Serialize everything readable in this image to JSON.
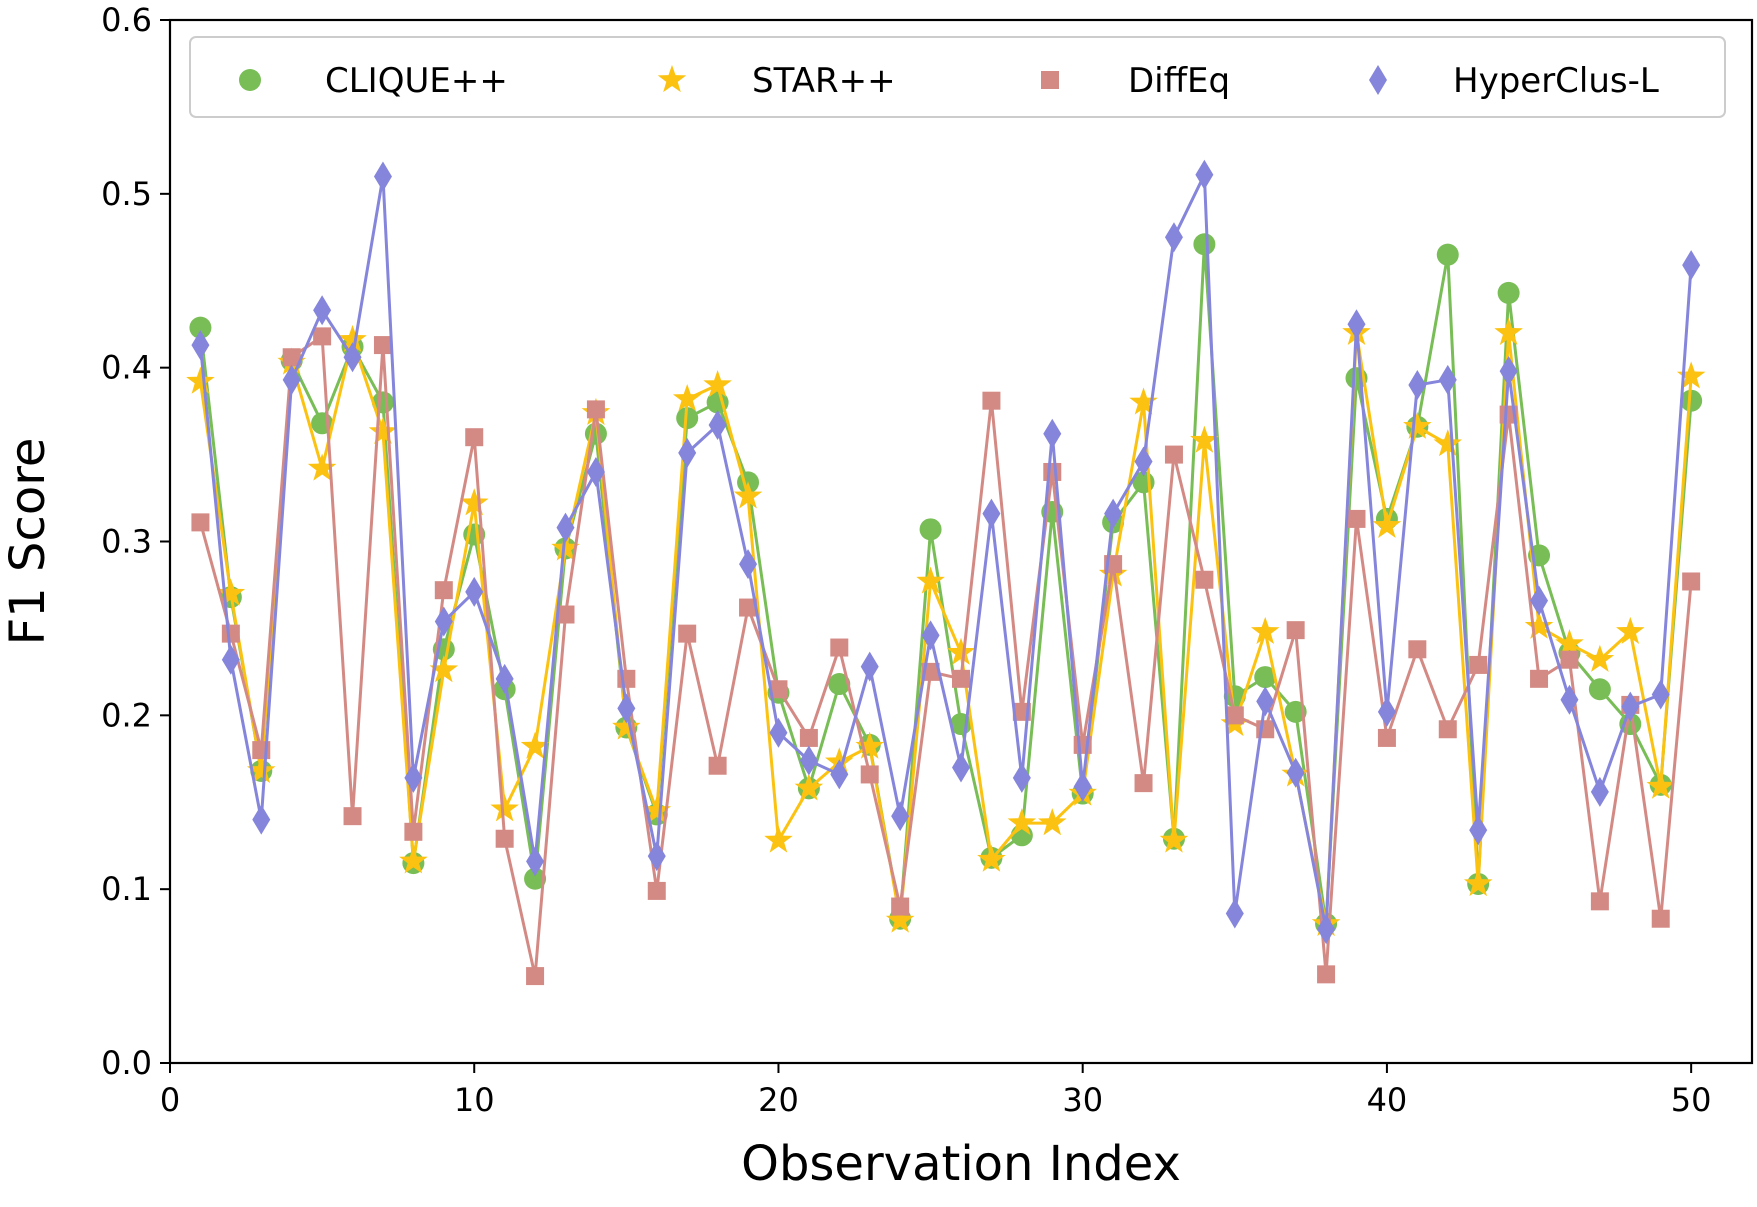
{
  "chart_data": {
    "type": "line",
    "xlabel": "Observation Index",
    "ylabel": "F1 Score",
    "xlim": [
      0,
      52
    ],
    "ylim": [
      0.0,
      0.6
    ],
    "xticks": [
      0,
      10,
      20,
      30,
      40,
      50
    ],
    "yticks": [
      0.0,
      0.1,
      0.2,
      0.3,
      0.4,
      0.5,
      0.6
    ],
    "xtick_labels": [
      "0",
      "10",
      "20",
      "30",
      "40",
      "50"
    ],
    "ytick_labels": [
      "0.0",
      "0.1",
      "0.2",
      "0.3",
      "0.4",
      "0.5",
      "0.6"
    ],
    "grid": false,
    "legend_position": "top",
    "x": [
      1,
      2,
      3,
      4,
      5,
      6,
      7,
      8,
      9,
      10,
      11,
      12,
      13,
      14,
      15,
      16,
      17,
      18,
      19,
      20,
      21,
      22,
      23,
      24,
      25,
      26,
      27,
      28,
      29,
      30,
      31,
      32,
      33,
      34,
      35,
      36,
      37,
      38,
      39,
      40,
      41,
      42,
      43,
      44,
      45,
      46,
      47,
      48,
      49,
      50
    ],
    "series": [
      {
        "name": "CLIQUE++",
        "color": "#78bd56",
        "marker": "circle",
        "values": [
          0.423,
          0.268,
          0.168,
          0.404,
          0.368,
          0.412,
          0.38,
          0.115,
          0.238,
          0.304,
          0.215,
          0.106,
          0.296,
          0.362,
          0.193,
          0.143,
          0.371,
          0.38,
          0.334,
          0.213,
          0.158,
          0.218,
          0.183,
          0.083,
          0.307,
          0.195,
          0.118,
          0.131,
          0.317,
          0.155,
          0.311,
          0.334,
          0.129,
          0.471,
          0.211,
          0.222,
          0.202,
          0.08,
          0.394,
          0.313,
          0.366,
          0.465,
          0.103,
          0.443,
          0.292,
          0.236,
          0.215,
          0.195,
          0.16,
          0.381
        ]
      },
      {
        "name": "STAR++",
        "color": "#fbc211",
        "marker": "star",
        "values": [
          0.392,
          0.27,
          0.168,
          0.403,
          0.342,
          0.416,
          0.363,
          0.116,
          0.226,
          0.322,
          0.146,
          0.182,
          0.296,
          0.374,
          0.193,
          0.145,
          0.382,
          0.39,
          0.326,
          0.128,
          0.158,
          0.173,
          0.182,
          0.082,
          0.277,
          0.236,
          0.117,
          0.138,
          0.138,
          0.155,
          0.281,
          0.38,
          0.128,
          0.358,
          0.195,
          0.248,
          0.166,
          0.08,
          0.42,
          0.309,
          0.366,
          0.356,
          0.103,
          0.42,
          0.251,
          0.241,
          0.232,
          0.248,
          0.159,
          0.395
        ]
      },
      {
        "name": "DiffEq",
        "color": "#d48a84",
        "marker": "square",
        "values": [
          0.311,
          0.247,
          0.18,
          0.406,
          0.418,
          0.142,
          0.413,
          0.133,
          0.272,
          0.36,
          0.129,
          0.05,
          0.258,
          0.376,
          0.221,
          0.099,
          0.247,
          0.171,
          0.262,
          0.215,
          0.187,
          0.239,
          0.166,
          0.09,
          0.225,
          0.221,
          0.381,
          0.202,
          0.34,
          0.183,
          0.287,
          0.161,
          0.35,
          0.278,
          0.2,
          0.192,
          0.249,
          0.051,
          0.313,
          0.187,
          0.238,
          0.192,
          0.229,
          0.373,
          0.221,
          0.232,
          0.093,
          0.206,
          0.083,
          0.277
        ]
      },
      {
        "name": "HyperClus-L",
        "color": "#8585dc",
        "marker": "diamond",
        "values": [
          0.413,
          0.232,
          0.14,
          0.393,
          0.433,
          0.406,
          0.51,
          0.164,
          0.254,
          0.271,
          0.221,
          0.116,
          0.308,
          0.34,
          0.204,
          0.119,
          0.351,
          0.367,
          0.287,
          0.19,
          0.174,
          0.166,
          0.228,
          0.142,
          0.246,
          0.17,
          0.316,
          0.164,
          0.362,
          0.159,
          0.316,
          0.346,
          0.475,
          0.511,
          0.086,
          0.208,
          0.167,
          0.077,
          0.425,
          0.202,
          0.39,
          0.393,
          0.134,
          0.398,
          0.266,
          0.209,
          0.156,
          0.205,
          0.212,
          0.459
        ]
      }
    ]
  }
}
